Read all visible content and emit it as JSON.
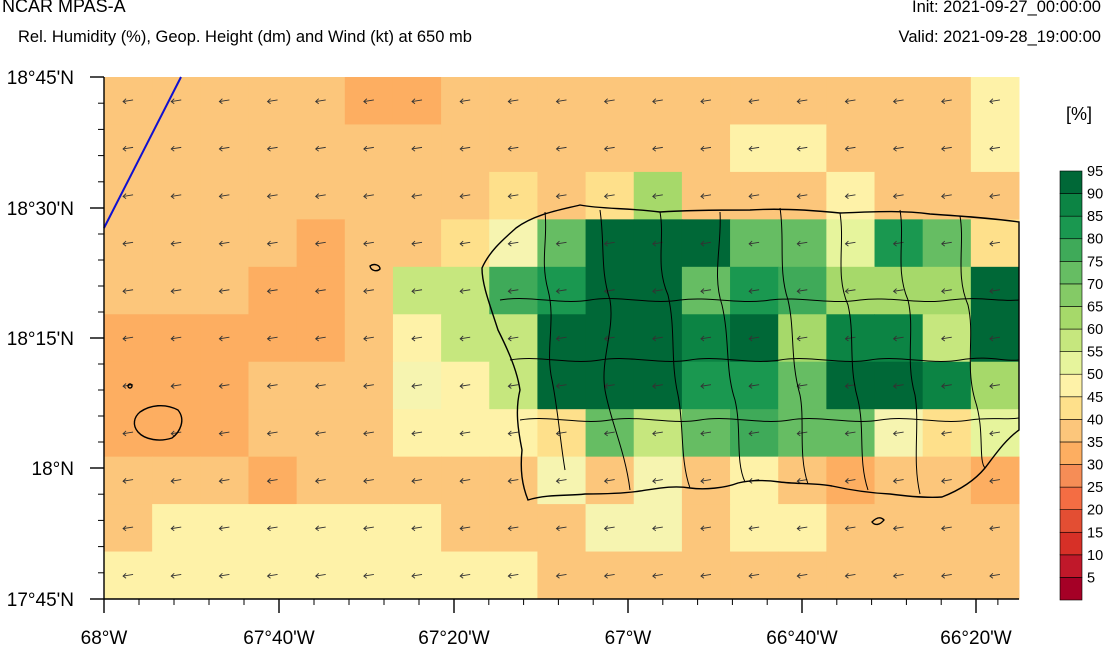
{
  "header": {
    "model": "NCAR MPAS-A",
    "description": "Rel. Humidity (%), Geop. Height (dm) and Wind (kt) at 650 mb",
    "init": "Init: 2021-09-27_00:00:00",
    "valid": "Valid: 2021-09-28_19:00:00"
  },
  "colorbar": {
    "unit": "[%]",
    "levels": [
      "5",
      "10",
      "15",
      "20",
      "25",
      "30",
      "35",
      "40",
      "45",
      "50",
      "55",
      "60",
      "65",
      "70",
      "75",
      "80",
      "85",
      "90",
      "95"
    ],
    "colors": [
      "#a50026",
      "#c0182a",
      "#d73027",
      "#e34e33",
      "#f46d43",
      "#f68d56",
      "#fdae61",
      "#fcc67b",
      "#fee08b",
      "#fef2a8",
      "#e6f49c",
      "#c6e77e",
      "#a6d96a",
      "#84ca66",
      "#66bd63",
      "#3faa59",
      "#1a9850",
      "#0c8444",
      "#006837"
    ]
  },
  "axes": {
    "lat_labels": [
      "18°45'N",
      "18°30'N",
      "18°15'N",
      "18°N",
      "17°45'N"
    ],
    "lon_labels": [
      "68°W",
      "67°40'W",
      "67°20'W",
      "67°W",
      "66°40'W",
      "66°20'W"
    ]
  },
  "map": {
    "contour_color": "#1010d0",
    "wind_direction": "easterly",
    "rh_grid": [
      [
        "a",
        "a",
        "a",
        "a",
        "a",
        "b",
        "b",
        "a",
        "a",
        "a",
        "a",
        "a",
        "a",
        "a",
        "a",
        "a",
        "a",
        "a",
        "d"
      ],
      [
        "a",
        "a",
        "a",
        "a",
        "a",
        "a",
        "a",
        "a",
        "a",
        "a",
        "a",
        "a",
        "a",
        "d",
        "d",
        "a",
        "a",
        "a",
        "d"
      ],
      [
        "a",
        "a",
        "a",
        "a",
        "a",
        "a",
        "a",
        "a",
        "c",
        "a",
        "c",
        "l",
        "a",
        "a",
        "a",
        "d",
        "a",
        "a",
        "a"
      ],
      [
        "a",
        "a",
        "a",
        "a",
        "b",
        "a",
        "a",
        "c",
        "e",
        "o",
        "s",
        "s",
        "s",
        "o",
        "o",
        "j",
        "q",
        "o",
        "c"
      ],
      [
        "a",
        "a",
        "a",
        "b",
        "b",
        "a",
        "k",
        "k",
        "p",
        "q",
        "s",
        "s",
        "o",
        "q",
        "p",
        "l",
        "l",
        "l",
        "s"
      ],
      [
        "b",
        "b",
        "b",
        "b",
        "b",
        "a",
        "d",
        "k",
        "k",
        "s",
        "s",
        "s",
        "r",
        "s",
        "l",
        "r",
        "r",
        "k",
        "s"
      ],
      [
        "b",
        "b",
        "b",
        "a",
        "a",
        "a",
        "e",
        "d",
        "k",
        "s",
        "s",
        "s",
        "q",
        "q",
        "o",
        "s",
        "s",
        "r",
        "l"
      ],
      [
        "b",
        "b",
        "b",
        "a",
        "a",
        "a",
        "d",
        "d",
        "d",
        "c",
        "o",
        "k",
        "o",
        "p",
        "o",
        "o",
        "e",
        "c",
        "j"
      ],
      [
        "a",
        "a",
        "a",
        "b",
        "a",
        "a",
        "a",
        "a",
        "a",
        "e",
        "a",
        "e",
        "a",
        "d",
        "a",
        "b",
        "a",
        "a",
        "b"
      ],
      [
        "a",
        "d",
        "d",
        "d",
        "d",
        "d",
        "d",
        "a",
        "a",
        "a",
        "e",
        "e",
        "a",
        "d",
        "d",
        "a",
        "a",
        "a",
        "a"
      ],
      [
        "d",
        "d",
        "d",
        "d",
        "d",
        "d",
        "d",
        "d",
        "d",
        "a",
        "a",
        "a",
        "a",
        "a",
        "a",
        "a",
        "a",
        "a",
        "a"
      ]
    ]
  }
}
